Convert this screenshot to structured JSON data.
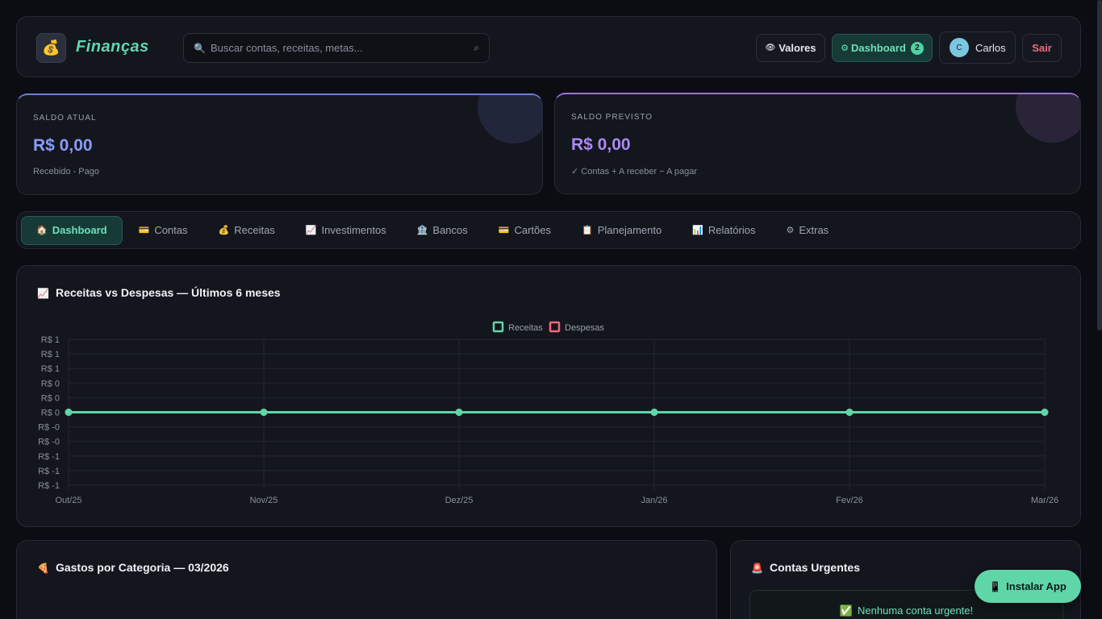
{
  "header": {
    "logo_icon": "money-bag-icon",
    "brand": "Finanças",
    "search_placeholder": "Buscar contas, receitas, metas...",
    "values_label": "Valores",
    "dashboard_label": "Dashboard",
    "dashboard_badge": "2",
    "user_initial": "C",
    "user_name": "Carlos",
    "logout_label": "Sair"
  },
  "balances": {
    "current": {
      "label": "SALDO ATUAL",
      "amount": "R$ 0,00",
      "sub": "Recebido - Pago"
    },
    "forecast": {
      "label": "SALDO PREVISTO",
      "amount": "R$ 0,00",
      "sub": "✓ Contas + A receber − A pagar"
    }
  },
  "nav": {
    "tabs": [
      {
        "icon": "🏠",
        "label": "Dashboard",
        "active": true
      },
      {
        "icon": "💳",
        "label": "Contas"
      },
      {
        "icon": "💰",
        "label": "Receitas"
      },
      {
        "icon": "📈",
        "label": "Investimentos"
      },
      {
        "icon": "🏦",
        "label": "Bancos"
      },
      {
        "icon": "💳",
        "label": "Cartões"
      },
      {
        "icon": "📋",
        "label": "Planejamento"
      },
      {
        "icon": "📊",
        "label": "Relatórios"
      },
      {
        "icon": "⚙",
        "label": "Extras"
      }
    ]
  },
  "chart_card": {
    "icon": "📈",
    "title": "Receitas vs Despesas — Últimos 6 meses"
  },
  "chart_data": {
    "type": "line",
    "categories": [
      "Out/25",
      "Nov/25",
      "Dez/25",
      "Jan/26",
      "Fev/26",
      "Mar/26"
    ],
    "series": [
      {
        "name": "Receitas",
        "values": [
          0,
          0,
          0,
          0,
          0,
          0
        ],
        "color": "#5fd6a8"
      },
      {
        "name": "Despesas",
        "values": [
          0,
          0,
          0,
          0,
          0,
          0
        ],
        "color": "#f06a7e"
      }
    ],
    "y_tick_labels": [
      "R$ 1",
      "R$ 1",
      "R$ 1",
      "R$ 0",
      "R$ 0",
      "R$ 0",
      "R$ -0",
      "R$ -0",
      "R$ -1",
      "R$ -1",
      "R$ -1"
    ],
    "ylim": [
      -1,
      1
    ],
    "legend": "top-center",
    "grid": true
  },
  "category_card": {
    "icon": "🍕",
    "title": "Gastos por Categoria — 03/2026"
  },
  "urgent_card": {
    "icon": "🚨",
    "title": "Contas Urgentes",
    "empty_icon": "✅",
    "empty_text": "Nenhuma conta urgente!"
  },
  "install": {
    "icon": "📱",
    "label": "Instalar App"
  },
  "colors": {
    "accent": "#5fd6a8",
    "danger": "#f06a7e",
    "current": "#8b9cf5",
    "forecast": "#a98af2"
  }
}
